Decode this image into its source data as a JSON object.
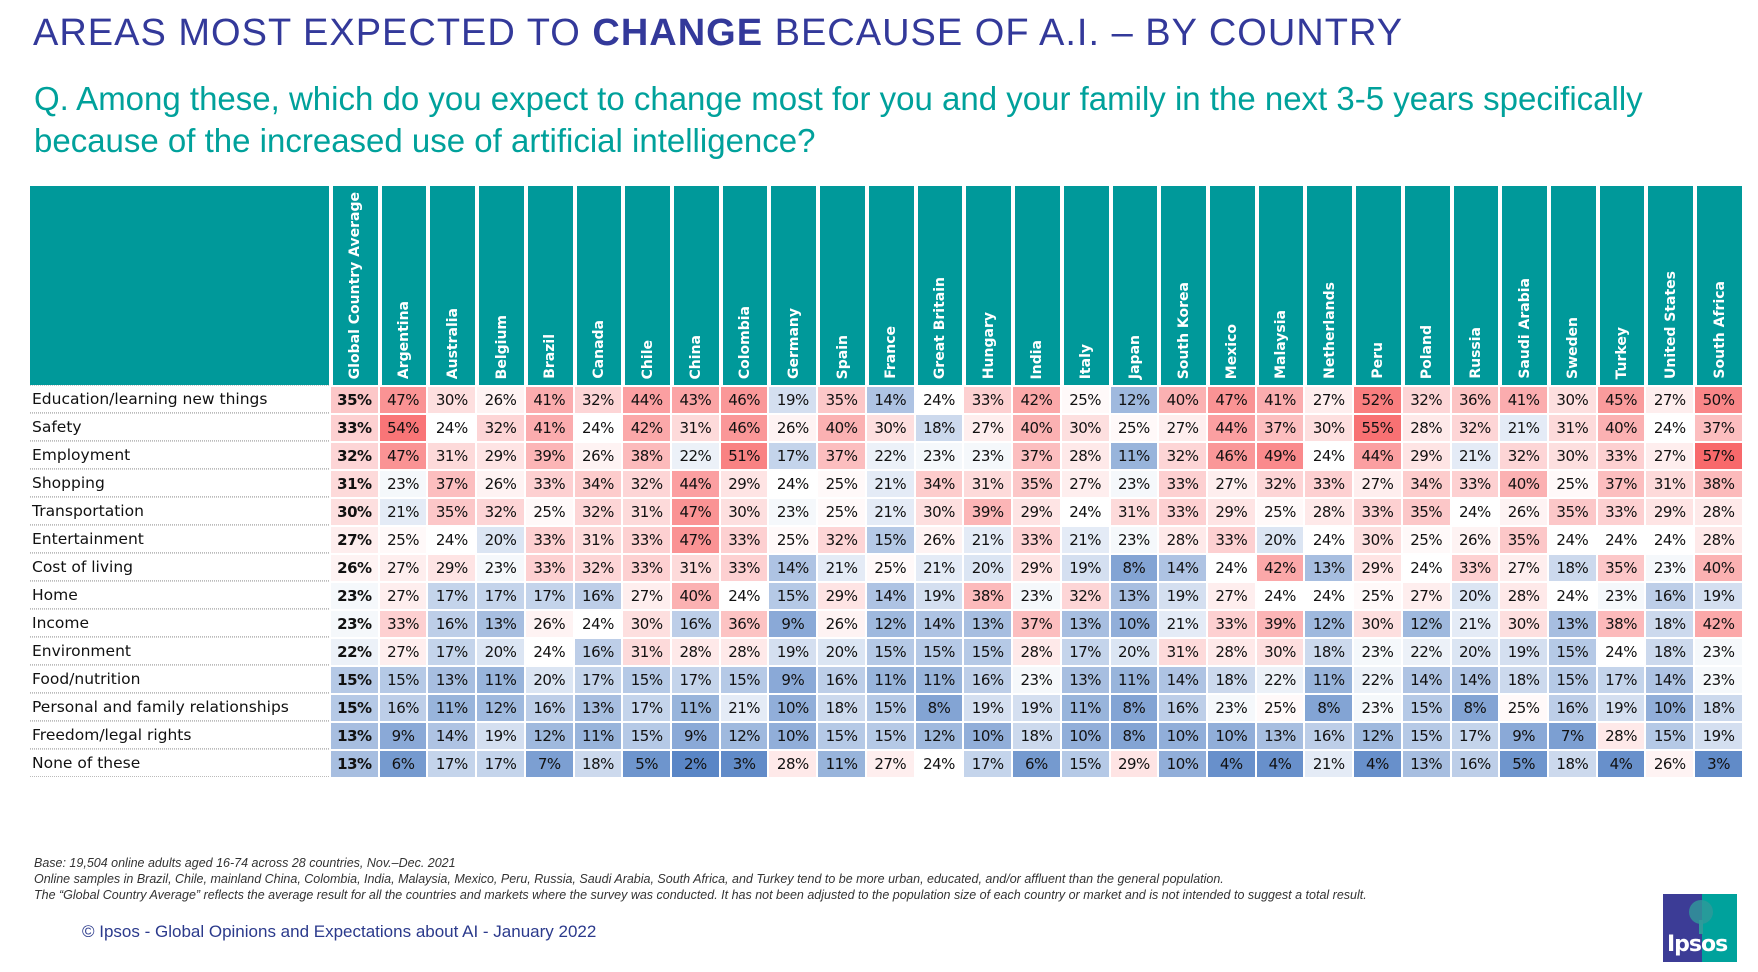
{
  "header": {
    "title_pre": "AREAS MOST EXPECTED TO ",
    "title_bold": "CHANGE",
    "title_post": " BECAUSE OF A.I. – BY COUNTRY",
    "subtitle": "Q. Among these, which do you expect to change most for you and your family in the next 3-5 years specifically because of the increased use of artificial intelligence?"
  },
  "colors": {
    "title": "#33399a",
    "subtitle": "#00a19b",
    "header_bg": "#00999a",
    "low": "#5a86c6",
    "mid": "#ffffff",
    "high": "#f8696b"
  },
  "chart_data": {
    "type": "heatmap",
    "title": "AREAS MOST EXPECTED TO CHANGE BECAUSE OF A.I. – BY COUNTRY",
    "unit": "%",
    "columns": [
      "Global Country Average",
      "Argentina",
      "Australia",
      "Belgium",
      "Brazil",
      "Canada",
      "Chile",
      "China",
      "Colombia",
      "Germany",
      "Spain",
      "France",
      "Great Britain",
      "Hungary",
      "India",
      "Italy",
      "Japan",
      "South Korea",
      "Mexico",
      "Malaysia",
      "Netherlands",
      "Peru",
      "Poland",
      "Russia",
      "Saudi Arabia",
      "Sweden",
      "Turkey",
      "United States",
      "South Africa"
    ],
    "rows": [
      {
        "label": "Education/learning new things",
        "values": [
          35,
          47,
          30,
          26,
          41,
          32,
          44,
          43,
          46,
          19,
          35,
          14,
          24,
          33,
          42,
          25,
          12,
          40,
          47,
          41,
          27,
          52,
          32,
          36,
          41,
          30,
          45,
          27,
          50
        ]
      },
      {
        "label": "Safety",
        "values": [
          33,
          54,
          24,
          32,
          41,
          24,
          42,
          31,
          46,
          26,
          40,
          30,
          18,
          27,
          40,
          30,
          25,
          27,
          44,
          37,
          30,
          55,
          28,
          32,
          21,
          31,
          40,
          24,
          37
        ]
      },
      {
        "label": "Employment",
        "values": [
          32,
          47,
          31,
          29,
          39,
          26,
          38,
          22,
          51,
          17,
          37,
          22,
          23,
          23,
          37,
          28,
          11,
          32,
          46,
          49,
          24,
          44,
          29,
          21,
          32,
          30,
          33,
          27,
          57
        ]
      },
      {
        "label": "Shopping",
        "values": [
          31,
          23,
          37,
          26,
          33,
          34,
          32,
          44,
          29,
          24,
          25,
          21,
          34,
          31,
          35,
          27,
          23,
          33,
          27,
          32,
          33,
          27,
          34,
          33,
          40,
          25,
          37,
          31,
          38
        ]
      },
      {
        "label": "Transportation",
        "values": [
          30,
          21,
          35,
          32,
          25,
          32,
          31,
          47,
          30,
          23,
          25,
          21,
          30,
          39,
          29,
          24,
          31,
          33,
          29,
          25,
          28,
          33,
          35,
          24,
          26,
          35,
          33,
          29,
          28
        ]
      },
      {
        "label": "Entertainment",
        "values": [
          27,
          25,
          24,
          20,
          33,
          31,
          33,
          47,
          33,
          25,
          32,
          15,
          26,
          21,
          33,
          21,
          23,
          28,
          33,
          20,
          24,
          30,
          25,
          26,
          35,
          24,
          24,
          24,
          28
        ]
      },
      {
        "label": "Cost of living",
        "values": [
          26,
          27,
          29,
          23,
          33,
          32,
          33,
          31,
          33,
          14,
          21,
          25,
          21,
          20,
          29,
          19,
          8,
          14,
          24,
          42,
          13,
          29,
          24,
          33,
          27,
          18,
          35,
          23,
          40
        ]
      },
      {
        "label": "Home",
        "values": [
          23,
          27,
          17,
          17,
          17,
          16,
          27,
          40,
          24,
          15,
          29,
          14,
          19,
          38,
          23,
          32,
          13,
          19,
          27,
          24,
          24,
          25,
          27,
          20,
          28,
          24,
          23,
          16,
          19
        ]
      },
      {
        "label": "Income",
        "values": [
          23,
          33,
          16,
          13,
          26,
          24,
          30,
          16,
          36,
          9,
          26,
          12,
          14,
          13,
          37,
          13,
          10,
          21,
          33,
          39,
          12,
          30,
          12,
          21,
          30,
          13,
          38,
          18,
          42
        ]
      },
      {
        "label": "Environment",
        "values": [
          22,
          27,
          17,
          20,
          24,
          16,
          31,
          28,
          28,
          19,
          20,
          15,
          15,
          15,
          28,
          17,
          20,
          31,
          28,
          30,
          18,
          23,
          22,
          20,
          19,
          15,
          24,
          18,
          23
        ]
      },
      {
        "label": "Food/nutrition",
        "values": [
          15,
          15,
          13,
          11,
          20,
          17,
          15,
          17,
          15,
          9,
          16,
          11,
          11,
          16,
          23,
          13,
          11,
          14,
          18,
          22,
          11,
          22,
          14,
          14,
          18,
          15,
          17,
          14,
          23
        ]
      },
      {
        "label": "Personal and family relationships",
        "values": [
          15,
          16,
          11,
          12,
          16,
          13,
          17,
          11,
          21,
          10,
          18,
          15,
          8,
          19,
          19,
          11,
          8,
          16,
          23,
          25,
          8,
          23,
          15,
          8,
          25,
          16,
          19,
          10,
          18
        ]
      },
      {
        "label": "Freedom/legal rights",
        "values": [
          13,
          9,
          14,
          19,
          12,
          11,
          15,
          9,
          12,
          10,
          15,
          15,
          12,
          10,
          18,
          10,
          8,
          10,
          10,
          13,
          16,
          12,
          15,
          17,
          9,
          7,
          28,
          15,
          19
        ]
      },
      {
        "label": "None of these",
        "values": [
          13,
          6,
          17,
          17,
          7,
          18,
          5,
          2,
          3,
          28,
          11,
          27,
          24,
          17,
          6,
          15,
          29,
          10,
          4,
          4,
          21,
          4,
          13,
          16,
          5,
          18,
          4,
          26,
          3
        ]
      }
    ]
  },
  "footer": {
    "notes": [
      "Base: 19,504 online adults aged 16-74 across 28 countries, Nov.–Dec. 2021",
      "Online samples in Brazil, Chile, mainland China, Colombia, India, Malaysia, Mexico, Peru, Russia, Saudi Arabia, South Africa, and Turkey tend to be more urban, educated, and/or affluent than the general population.",
      "The “Global  Country Average” reflects the average result for all the countries and markets where the survey was conducted. It has not been adjusted to the population size of each country or market and is not intended to suggest a total result."
    ],
    "copyright": "© Ipsos - Global Opinions and Expectations about AI - January 2022",
    "logo_text": "Ipsos"
  }
}
